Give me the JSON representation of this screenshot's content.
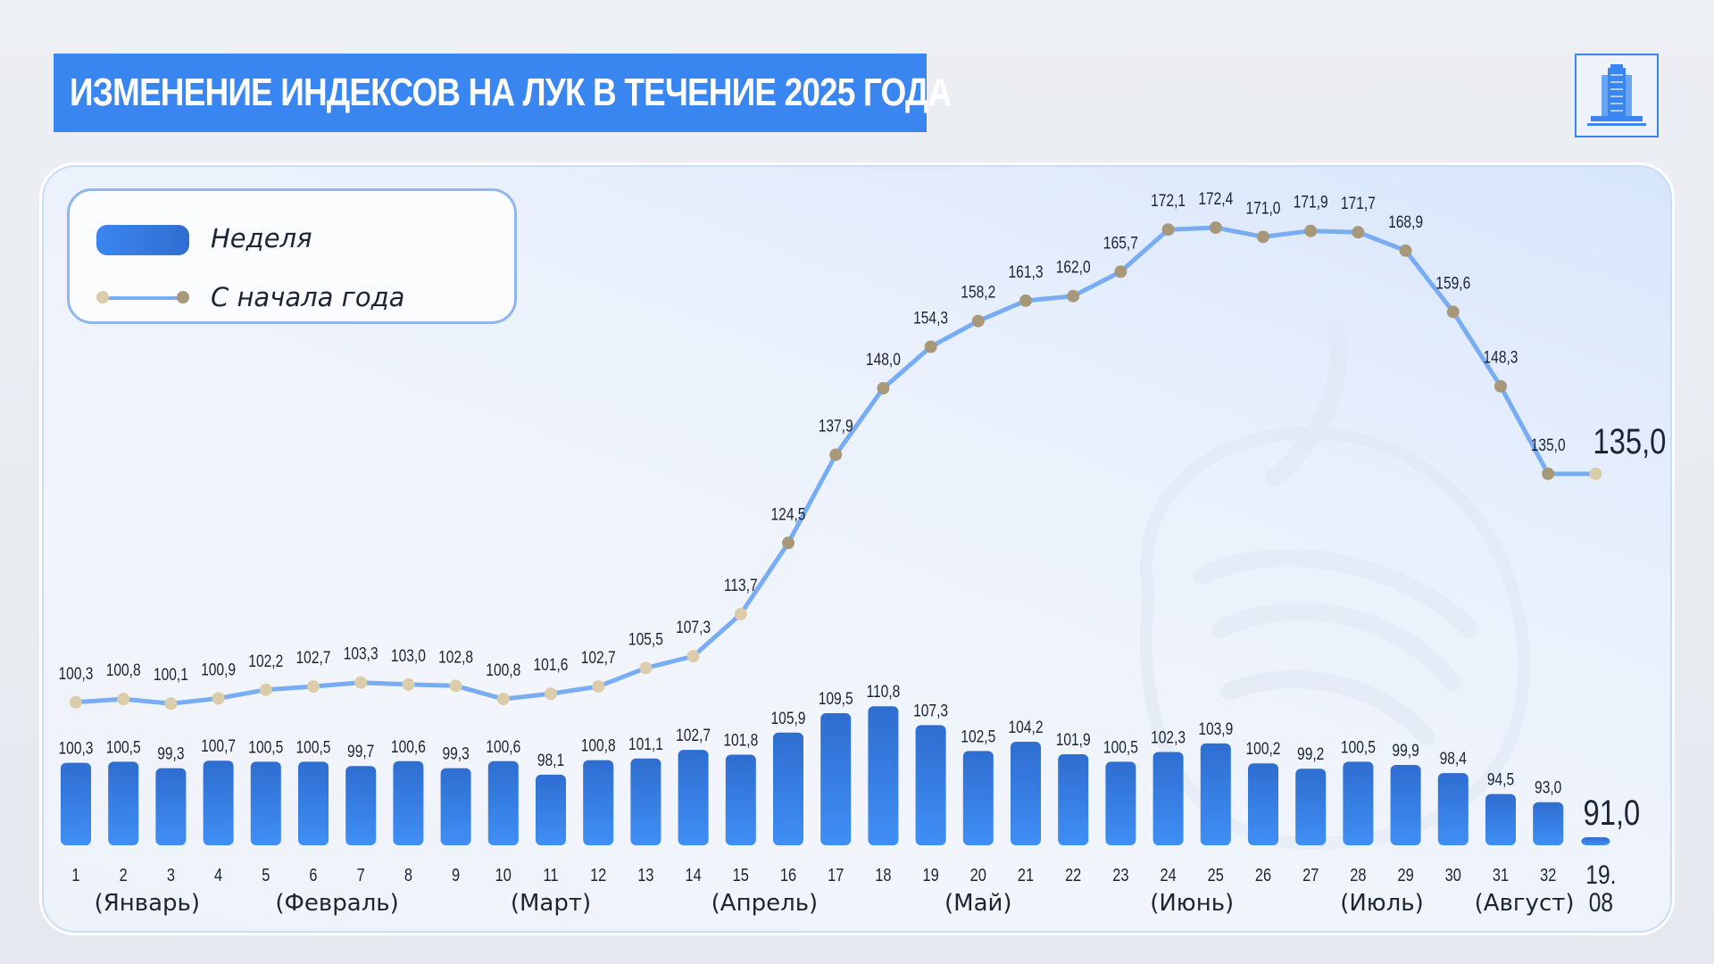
{
  "title": "ИЗМЕНЕНИЕ ИНДЕКСОВ НА ЛУК В ТЕЧЕНИЕ 2025 ГОДА",
  "legend": {
    "weekly_label": "Неделя",
    "ytd_label": "С начала года"
  },
  "colors": {
    "accent": "#3a86f0",
    "bar_top": "#3a86f0",
    "bar_bottom": "#2f6dd0",
    "line": "#78acf3",
    "dot_light": "#dccdaa",
    "dot_dark": "#a8987a",
    "text": "#1d2433"
  },
  "chart_data": {
    "type": "bar+line",
    "title": "ИЗМЕНЕНИЕ ИНДЕКСОВ НА ЛУК В ТЕЧЕНИЕ 2025 ГОДА",
    "categories": [
      "1",
      "2",
      "3",
      "4",
      "5",
      "6",
      "7",
      "8",
      "9",
      "10",
      "11",
      "12",
      "13",
      "14",
      "15",
      "16",
      "17",
      "18",
      "19",
      "20",
      "21",
      "22",
      "23",
      "24",
      "25",
      "26",
      "27",
      "28",
      "29",
      "30",
      "31",
      "32",
      "19.08"
    ],
    "series": [
      {
        "name": "Неделя",
        "type": "bar",
        "values": [
          100.3,
          100.5,
          99.3,
          100.7,
          100.5,
          100.5,
          99.7,
          100.6,
          99.3,
          100.6,
          98.1,
          100.8,
          101.1,
          102.7,
          101.8,
          105.9,
          109.5,
          110.8,
          107.3,
          102.5,
          104.2,
          101.9,
          100.5,
          102.3,
          103.9,
          100.2,
          99.2,
          100.5,
          99.9,
          98.4,
          94.5,
          93.0,
          91.0
        ],
        "labels": [
          "100,3",
          "100,5",
          "99,3",
          "100,7",
          "100,5",
          "100,5",
          "99,7",
          "100,6",
          "99,3",
          "100,6",
          "98,1",
          "100,8",
          "101,1",
          "102,7",
          "101,8",
          "105,9",
          "109,5",
          "110,8",
          "107,3",
          "102,5",
          "104,2",
          "101,9",
          "100,5",
          "102,3",
          "103,9",
          "100,2",
          "99,2",
          "100,5",
          "99,9",
          "98,4",
          "94,5",
          "93,0",
          "91,0"
        ]
      },
      {
        "name": "С начала года",
        "type": "line",
        "values": [
          100.3,
          100.8,
          100.1,
          100.9,
          102.2,
          102.7,
          103.3,
          103.0,
          102.8,
          100.8,
          101.6,
          102.7,
          105.5,
          107.3,
          113.7,
          124.5,
          137.9,
          148.0,
          154.3,
          158.2,
          161.3,
          162.0,
          165.7,
          172.1,
          172.4,
          171.0,
          171.9,
          171.7,
          168.9,
          159.6,
          148.3,
          135.0,
          135.0
        ],
        "labels": [
          "100,3",
          "100,8",
          "100,1",
          "100,9",
          "102,2",
          "102,7",
          "103,3",
          "103,0",
          "102,8",
          "100,8",
          "101,6",
          "102,7",
          "105,5",
          "107,3",
          "113,7",
          "124,5",
          "137,9",
          "148,0",
          "154,3",
          "158,2",
          "161,3",
          "162,0",
          "165,7",
          "172,1",
          "172,4",
          "171,0",
          "171,9",
          "171,7",
          "168,9",
          "159,6",
          "148,3",
          "135,0",
          "135,0"
        ]
      }
    ],
    "months": [
      {
        "label": "(Январь)",
        "from": 1,
        "to": 4
      },
      {
        "label": "(Февраль)",
        "from": 5,
        "to": 8
      },
      {
        "label": "(Март)",
        "from": 9,
        "to": 13
      },
      {
        "label": "(Апрель)",
        "from": 14,
        "to": 17
      },
      {
        "label": "(Май)",
        "from": 18,
        "to": 22
      },
      {
        "label": "(Июнь)",
        "from": 23,
        "to": 26
      },
      {
        "label": "(Июль)",
        "from": 27,
        "to": 30
      },
      {
        "label": "(Август)",
        "from": 31,
        "to": 32
      }
    ],
    "last_tick_lines": [
      "19.",
      "08"
    ],
    "bar_ylim": [
      85,
      111
    ],
    "line_ylim": [
      100,
      172.4
    ]
  }
}
